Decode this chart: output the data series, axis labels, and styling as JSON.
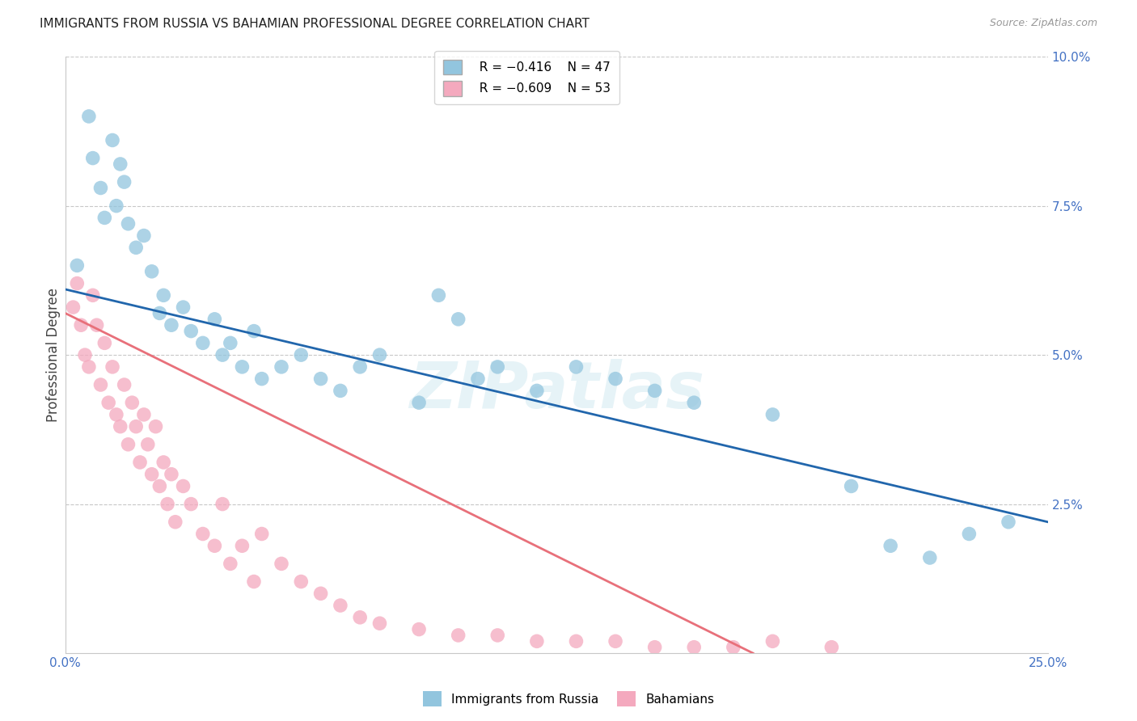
{
  "title": "IMMIGRANTS FROM RUSSIA VS BAHAMIAN PROFESSIONAL DEGREE CORRELATION CHART",
  "source": "Source: ZipAtlas.com",
  "ylabel": "Professional Degree",
  "legend_r1": "R = −0.416",
  "legend_n1": "N = 47",
  "legend_r2": "R = −0.609",
  "legend_n2": "N = 53",
  "blue_color": "#92c5de",
  "pink_color": "#f4a9be",
  "line_blue": "#2166ac",
  "line_pink": "#e8707a",
  "xlim": [
    0.0,
    0.25
  ],
  "ylim": [
    0.0,
    0.1
  ],
  "blue_line_x": [
    0.0,
    0.25
  ],
  "blue_line_y": [
    0.061,
    0.022
  ],
  "pink_line_x": [
    0.0,
    0.175
  ],
  "pink_line_y": [
    0.057,
    0.0
  ],
  "blue_scatter_x": [
    0.003,
    0.006,
    0.007,
    0.009,
    0.01,
    0.012,
    0.013,
    0.014,
    0.015,
    0.016,
    0.018,
    0.02,
    0.022,
    0.024,
    0.025,
    0.027,
    0.03,
    0.032,
    0.035,
    0.038,
    0.04,
    0.042,
    0.045,
    0.048,
    0.05,
    0.055,
    0.06,
    0.065,
    0.07,
    0.075,
    0.08,
    0.09,
    0.095,
    0.1,
    0.105,
    0.11,
    0.12,
    0.13,
    0.14,
    0.15,
    0.16,
    0.18,
    0.2,
    0.21,
    0.22,
    0.23,
    0.24
  ],
  "blue_scatter_y": [
    0.065,
    0.09,
    0.083,
    0.078,
    0.073,
    0.086,
    0.075,
    0.082,
    0.079,
    0.072,
    0.068,
    0.07,
    0.064,
    0.057,
    0.06,
    0.055,
    0.058,
    0.054,
    0.052,
    0.056,
    0.05,
    0.052,
    0.048,
    0.054,
    0.046,
    0.048,
    0.05,
    0.046,
    0.044,
    0.048,
    0.05,
    0.042,
    0.06,
    0.056,
    0.046,
    0.048,
    0.044,
    0.048,
    0.046,
    0.044,
    0.042,
    0.04,
    0.028,
    0.018,
    0.016,
    0.02,
    0.022
  ],
  "pink_scatter_x": [
    0.002,
    0.003,
    0.004,
    0.005,
    0.006,
    0.007,
    0.008,
    0.009,
    0.01,
    0.011,
    0.012,
    0.013,
    0.014,
    0.015,
    0.016,
    0.017,
    0.018,
    0.019,
    0.02,
    0.021,
    0.022,
    0.023,
    0.024,
    0.025,
    0.026,
    0.027,
    0.028,
    0.03,
    0.032,
    0.035,
    0.038,
    0.04,
    0.042,
    0.045,
    0.048,
    0.05,
    0.055,
    0.06,
    0.065,
    0.07,
    0.075,
    0.08,
    0.09,
    0.1,
    0.11,
    0.12,
    0.13,
    0.14,
    0.15,
    0.16,
    0.17,
    0.18,
    0.195
  ],
  "pink_scatter_y": [
    0.058,
    0.062,
    0.055,
    0.05,
    0.048,
    0.06,
    0.055,
    0.045,
    0.052,
    0.042,
    0.048,
    0.04,
    0.038,
    0.045,
    0.035,
    0.042,
    0.038,
    0.032,
    0.04,
    0.035,
    0.03,
    0.038,
    0.028,
    0.032,
    0.025,
    0.03,
    0.022,
    0.028,
    0.025,
    0.02,
    0.018,
    0.025,
    0.015,
    0.018,
    0.012,
    0.02,
    0.015,
    0.012,
    0.01,
    0.008,
    0.006,
    0.005,
    0.004,
    0.003,
    0.003,
    0.002,
    0.002,
    0.002,
    0.001,
    0.001,
    0.001,
    0.002,
    0.001
  ],
  "axis_tick_color": "#4472c4",
  "grid_color": "#c8c8c8",
  "background_color": "#ffffff",
  "title_fontsize": 11,
  "source_fontsize": 9,
  "tick_fontsize": 11,
  "ylabel_fontsize": 12
}
